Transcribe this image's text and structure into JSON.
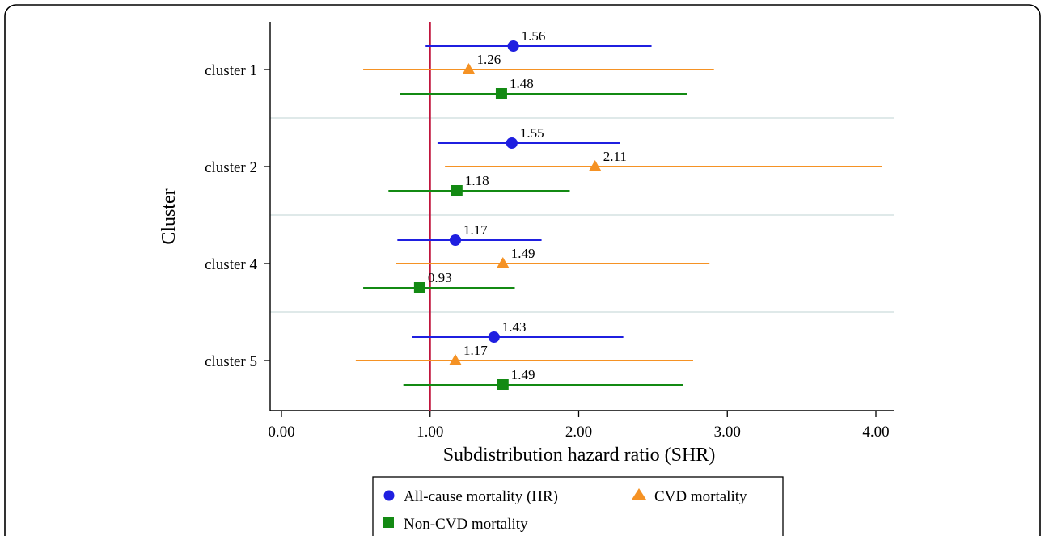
{
  "chart_data": {
    "type": "forest",
    "xlabel": "Subdistribution hazard ratio (SHR)",
    "ylabel": "Cluster",
    "xlim": [
      0,
      4.15
    ],
    "xticks": [
      "0.00",
      "1.00",
      "2.00",
      "3.00",
      "4.00"
    ],
    "reference_line": 1.0,
    "reference_color": "#c0143c",
    "legend_position": "bottom",
    "categories": [
      "cluster 1",
      "cluster 2",
      "cluster 4",
      "cluster 5"
    ],
    "series": [
      {
        "name": "All-cause mortality (HR)",
        "marker": "circle",
        "color": "#1f1fe0",
        "points": [
          {
            "value": 1.56,
            "label": "1.56",
            "lower": 0.97,
            "upper": 2.49
          },
          {
            "value": 1.55,
            "label": "1.55",
            "lower": 1.05,
            "upper": 2.28
          },
          {
            "value": 1.17,
            "label": "1.17",
            "lower": 0.78,
            "upper": 1.75
          },
          {
            "value": 1.43,
            "label": "1.43",
            "lower": 0.88,
            "upper": 2.3
          }
        ]
      },
      {
        "name": "CVD mortality",
        "marker": "triangle",
        "color": "#f59224",
        "points": [
          {
            "value": 1.26,
            "label": "1.26",
            "lower": 0.55,
            "upper": 2.91
          },
          {
            "value": 2.11,
            "label": "2.11",
            "lower": 1.1,
            "upper": 4.04
          },
          {
            "value": 1.49,
            "label": "1.49",
            "lower": 0.77,
            "upper": 2.88
          },
          {
            "value": 1.17,
            "label": "1.17",
            "lower": 0.5,
            "upper": 2.77
          }
        ]
      },
      {
        "name": "Non-CVD mortality",
        "marker": "square",
        "color": "#138a13",
        "points": [
          {
            "value": 1.48,
            "label": "1.48",
            "lower": 0.8,
            "upper": 2.73
          },
          {
            "value": 1.18,
            "label": "1.18",
            "lower": 0.72,
            "upper": 1.94
          },
          {
            "value": 0.93,
            "label": "0.93",
            "lower": 0.55,
            "upper": 1.57
          },
          {
            "value": 1.49,
            "label": "1.49",
            "lower": 0.82,
            "upper": 2.7
          }
        ]
      }
    ]
  }
}
